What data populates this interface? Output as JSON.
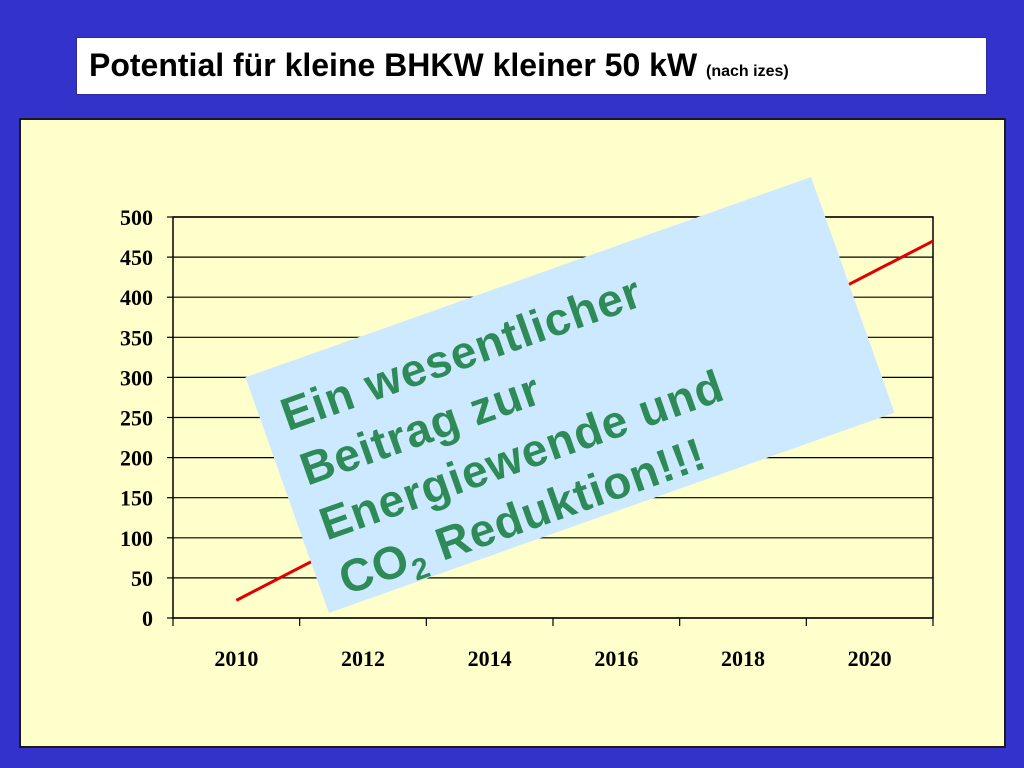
{
  "header": {
    "title": "Potential für kleine BHKW kleiner 50 kW",
    "subtitle": "(nach izes)"
  },
  "colors": {
    "background": "#3333cc",
    "panel": "#ffffcc",
    "overlay": "#cce9ff",
    "overlay_text": "#2e8b57",
    "series_line": "#e00000"
  },
  "chart_data": {
    "type": "line",
    "title": "",
    "xlabel": "",
    "ylabel": "",
    "x_ticks": [
      "2010",
      "2012",
      "2014",
      "2016",
      "2018",
      "2020"
    ],
    "y_ticks": [
      "0",
      "50",
      "100",
      "150",
      "200",
      "250",
      "300",
      "350",
      "400",
      "450",
      "500"
    ],
    "xlim": [
      2009,
      2021
    ],
    "ylim": [
      0,
      500
    ],
    "grid": "horizontal",
    "series": [
      {
        "x": [
          2010,
          2021
        ],
        "values": [
          22,
          470
        ]
      }
    ]
  },
  "overlay": {
    "line1": "Ein wesentlicher",
    "line2": "Beitrag zur",
    "line3": "Energiewende und",
    "line4_co": "CO",
    "line4_sub": "2",
    "line4_rest": " Reduktion!!!"
  }
}
